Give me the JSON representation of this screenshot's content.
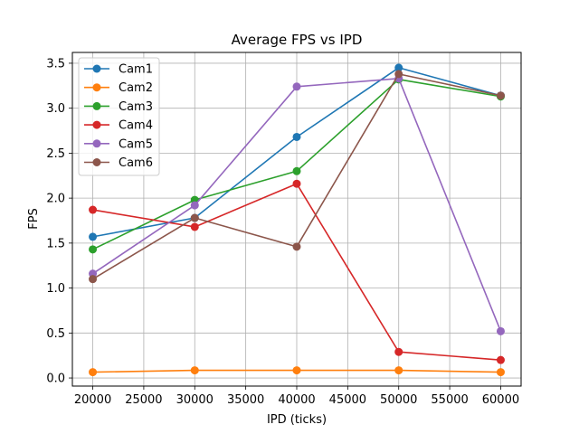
{
  "chart_data": {
    "type": "line",
    "title": "Average FPS vs IPD",
    "xlabel": "IPD (ticks)",
    "ylabel": "FPS",
    "x": [
      20000,
      30000,
      40000,
      50000,
      60000
    ],
    "xlim": [
      18000,
      62000
    ],
    "ylim": [
      -0.09,
      3.62
    ],
    "xticks": [
      20000,
      25000,
      30000,
      35000,
      40000,
      45000,
      50000,
      55000,
      60000
    ],
    "yticks": [
      0.0,
      0.5,
      1.0,
      1.5,
      2.0,
      2.5,
      3.0,
      3.5
    ],
    "xtick_labels": [
      "20000",
      "25000",
      "30000",
      "35000",
      "40000",
      "45000",
      "50000",
      "55000",
      "60000"
    ],
    "ytick_labels": [
      "0.0",
      "0.5",
      "1.0",
      "1.5",
      "2.0",
      "2.5",
      "3.0",
      "3.5"
    ],
    "grid": true,
    "legend_position": "top-left",
    "series": [
      {
        "name": "Cam1",
        "color": "#1f77b4",
        "values": [
          1.57,
          1.78,
          2.68,
          3.45,
          3.14
        ]
      },
      {
        "name": "Cam2",
        "color": "#ff7f0e",
        "values": [
          0.065,
          0.085,
          0.085,
          0.085,
          0.065
        ]
      },
      {
        "name": "Cam3",
        "color": "#2ca02c",
        "values": [
          1.43,
          1.98,
          2.3,
          3.32,
          3.13
        ]
      },
      {
        "name": "Cam4",
        "color": "#d62728",
        "values": [
          1.87,
          1.68,
          2.16,
          0.29,
          0.2
        ]
      },
      {
        "name": "Cam5",
        "color": "#9467bd",
        "values": [
          1.16,
          1.92,
          3.24,
          3.33,
          0.52
        ]
      },
      {
        "name": "Cam6",
        "color": "#8c564b",
        "values": [
          1.1,
          1.78,
          1.46,
          3.38,
          3.14
        ]
      }
    ]
  }
}
